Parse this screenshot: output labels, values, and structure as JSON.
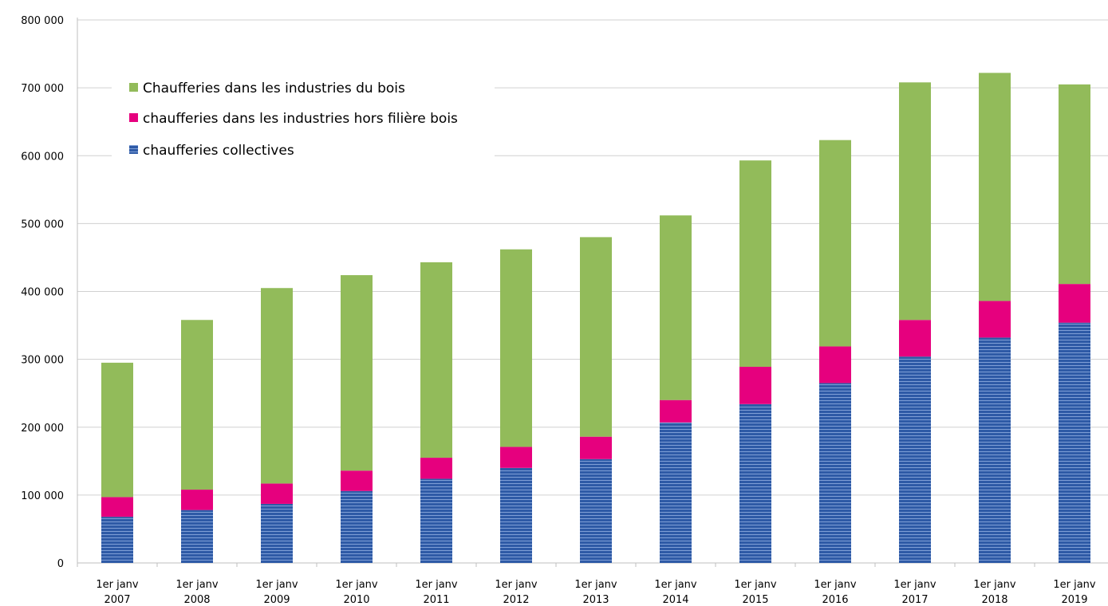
{
  "chart_data": {
    "type": "bar",
    "stacked": true,
    "categories": [
      "1er janv 2007",
      "1er janv 2008",
      "1er janv 2009",
      "1er janv 2010",
      "1er janv 2011",
      "1er janv 2012",
      "1er janv 2013",
      "1er janv 2014",
      "1er janv 2015",
      "1er janv 2016",
      "1er janv 2017",
      "1er janv 2018",
      "1er janv 2019"
    ],
    "category_lines": [
      [
        "1er janv",
        "2007"
      ],
      [
        "1er janv",
        "2008"
      ],
      [
        "1er janv",
        "2009"
      ],
      [
        "1er janv",
        "2010"
      ],
      [
        "1er janv",
        "2011"
      ],
      [
        "1er janv",
        "2012"
      ],
      [
        "1er janv",
        "2013"
      ],
      [
        "1er janv",
        "2014"
      ],
      [
        "1er janv",
        "2015"
      ],
      [
        "1er janv",
        "2016"
      ],
      [
        "1er janv",
        "2017"
      ],
      [
        "1er janv",
        "2018"
      ],
      [
        "1er janv",
        "2019"
      ]
    ],
    "series": [
      {
        "name": "chaufferies collectives",
        "color": "#2e5aa6",
        "values": [
          68000,
          78000,
          87000,
          106000,
          124000,
          140000,
          153000,
          207000,
          234000,
          265000,
          304000,
          332000,
          354000
        ]
      },
      {
        "name": "chaufferies dans les industries hors filière bois",
        "color": "#e6007e",
        "values": [
          29000,
          30000,
          30000,
          30000,
          31000,
          31000,
          33000,
          33000,
          55000,
          54000,
          54000,
          54000,
          57000
        ]
      },
      {
        "name": "Chaufferies dans les industries du bois",
        "color": "#92bb5a",
        "values": [
          198000,
          250000,
          288000,
          288000,
          288000,
          291000,
          294000,
          272000,
          304000,
          304000,
          350000,
          336000,
          294000
        ]
      }
    ],
    "legend_order": [
      "Chaufferies dans les industries du bois",
      "chaufferies dans les industries hors filière bois",
      "chaufferies collectives"
    ],
    "yticks": [
      "0",
      "100 000",
      "200 000",
      "300 000",
      "400 000",
      "500 000",
      "600 000",
      "700 000",
      "800 000"
    ],
    "ylim": [
      0,
      800000
    ],
    "grid": true,
    "legend_position": "top-left",
    "title": "",
    "xlabel": "",
    "ylabel": ""
  }
}
